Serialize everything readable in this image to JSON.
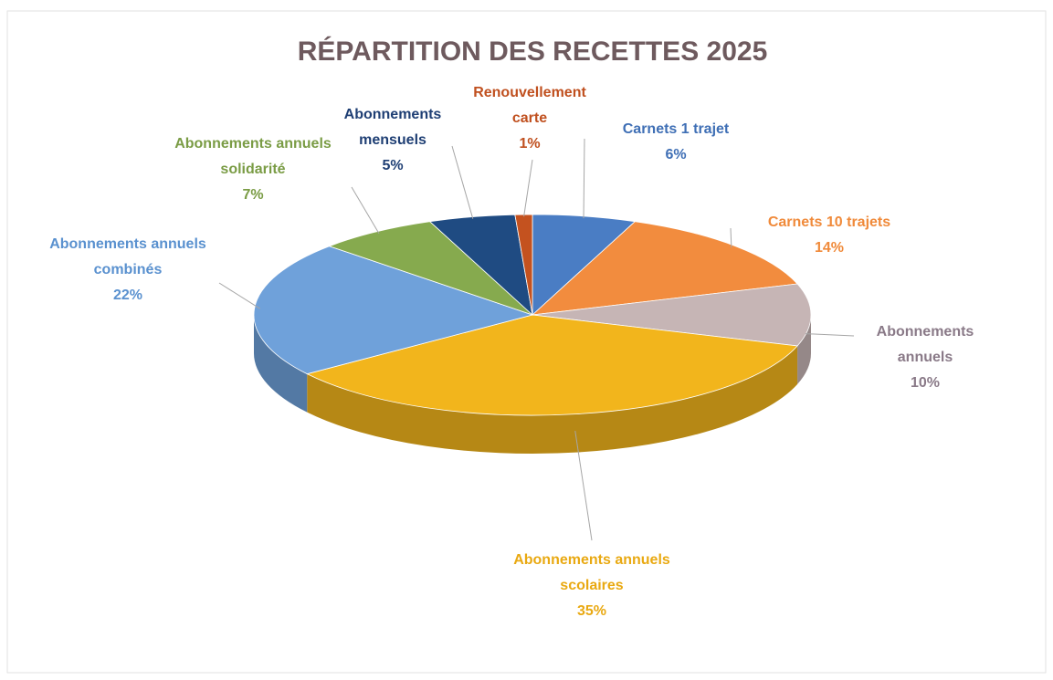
{
  "chart_data": {
    "type": "pie3d",
    "title": "RÉPARTITION DES RECETTES 2025",
    "categories": [
      "Carnets 1 trajet",
      "Carnets 10 trajets",
      "Abonnements annuels",
      "Abonnements annuels scolaires",
      "Abonnements annuels combinés",
      "Abonnements annuels solidarité",
      "Abonnements mensuels",
      "Renouvellement carte"
    ],
    "values": [
      6,
      14,
      10,
      35,
      22,
      7,
      5,
      1
    ],
    "value_labels": [
      "6%",
      "14%",
      "10%",
      "35%",
      "22%",
      "7%",
      "5%",
      "1%"
    ],
    "colors": [
      "#4a7dc4",
      "#f28c3e",
      "#c6b5b5",
      "#f2b51c",
      "#6fa1da",
      "#86aa4e",
      "#1f4b82",
      "#c4521f"
    ]
  }
}
